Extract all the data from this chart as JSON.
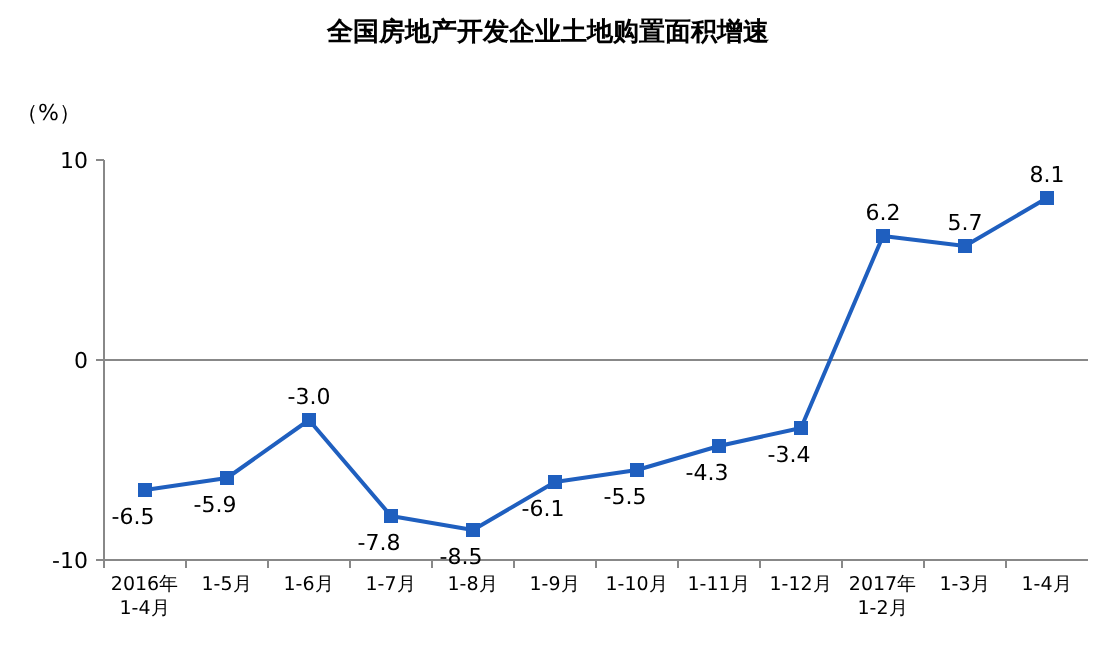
{
  "chart_data": {
    "type": "line",
    "title": "全国房地产开发企业土地购置面积增速",
    "ylabel": "（%）",
    "categories": [
      "2016年\n1-4月",
      "1-5月",
      "1-6月",
      "1-7月",
      "1-8月",
      "1-9月",
      "1-10月",
      "1-11月",
      "1-12月",
      "2017年\n1-2月",
      "1-3月",
      "1-4月"
    ],
    "series": [
      {
        "color": "#1f5fbf",
        "values": [
          -6.5,
          -5.9,
          -3.0,
          -7.8,
          -8.5,
          -6.1,
          -5.5,
          -4.3,
          -3.4,
          6.2,
          5.7,
          8.1
        ],
        "value_labels": [
          "-6.5",
          "-5.9",
          "-3.0",
          "-7.8",
          "-8.5",
          "-6.1",
          "-5.5",
          "-4.3",
          "-3.4",
          "6.2",
          "5.7",
          "8.1"
        ]
      }
    ],
    "ref_lines": [
      {
        "axis": "y",
        "value": 0
      }
    ],
    "ylim": [
      -10,
      10
    ],
    "yticks": [
      -10,
      0,
      10
    ],
    "marker": "square"
  }
}
